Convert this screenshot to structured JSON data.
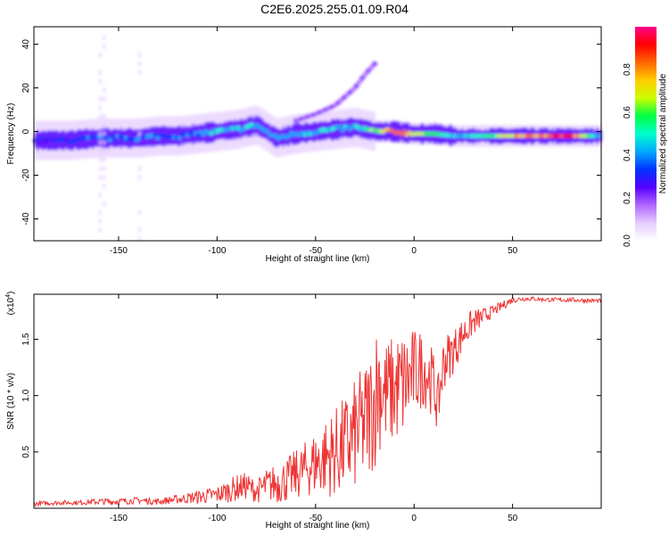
{
  "title": "C2E6.2025.255.01.09.R04",
  "colors": {
    "snr_line": "#ee3333",
    "spectrum_palette": [
      "#ffffff",
      "#e6ccff",
      "#b266ff",
      "#5500ff",
      "#0033ff",
      "#00aaff",
      "#00ffcc",
      "#00ff44",
      "#ccff00",
      "#ffcc00",
      "#ff6600",
      "#ff0000",
      "#ff0088"
    ]
  },
  "chart_data": [
    {
      "type": "heatmap",
      "xlabel": "Height of straight line (km)",
      "ylabel": "Frequency (Hz)",
      "xlim": [
        -193,
        95
      ],
      "ylim": [
        -50,
        48
      ],
      "xticks": [
        -150,
        -100,
        -50,
        0,
        50
      ],
      "yticks": [
        -40,
        -20,
        0,
        20,
        40
      ],
      "ridge": {
        "x": [
          -193,
          -175,
          -160,
          -150,
          -140,
          -130,
          -120,
          -110,
          -100,
          -90,
          -80,
          -70,
          -60,
          -50,
          -40,
          -30,
          -20,
          -10,
          0,
          10,
          20,
          30,
          40,
          50,
          60,
          70,
          80,
          95
        ],
        "y": [
          -4,
          -4,
          -3,
          -3,
          -3,
          -2,
          -2,
          -1,
          0,
          1,
          3,
          -3,
          -1,
          0,
          1,
          2,
          0,
          0,
          -1,
          -1,
          -2,
          -2,
          -2,
          -2,
          -2,
          -2,
          -2,
          -2
        ],
        "amplitude": [
          0.3,
          0.32,
          0.38,
          0.4,
          0.36,
          0.38,
          0.38,
          0.4,
          0.42,
          0.45,
          0.42,
          0.4,
          0.45,
          0.45,
          0.45,
          0.45,
          0.6,
          0.85,
          0.7,
          0.55,
          0.45,
          0.5,
          0.55,
          0.75,
          0.8,
          0.85,
          0.9,
          0.35
        ]
      },
      "branch": {
        "x": [
          -60,
          -50,
          -40,
          -35,
          -30,
          -25,
          -20
        ],
        "y": [
          5,
          8,
          12,
          16,
          20,
          26,
          31
        ]
      },
      "colorbar": {
        "label": "Normalized spectral amplitude",
        "ticks": [
          0.0,
          0.2,
          0.4,
          0.6,
          0.8
        ],
        "range": [
          0,
          1
        ]
      }
    },
    {
      "type": "line",
      "xlabel": "Height of straight line (km)",
      "ylabel": "SNR (10 * v/v)",
      "y_multiplier": "(x10",
      "y_multiplier_exp": "4",
      "xlim": [
        -193,
        95
      ],
      "ylim": [
        0,
        1.9
      ],
      "xticks": [
        -150,
        -100,
        -50,
        0,
        50
      ],
      "yticks": [
        0.5,
        1.0,
        1.5
      ],
      "series": [
        {
          "x": [
            -193,
            -180,
            -170,
            -160,
            -150,
            -140,
            -130,
            -120,
            -110,
            -100,
            -95,
            -90,
            -85,
            -80,
            -75,
            -70,
            -65,
            -60,
            -55,
            -50,
            -45,
            -40,
            -35,
            -30,
            -25,
            -20,
            -18,
            -15,
            -10,
            -5,
            0,
            5,
            10,
            12,
            15,
            20,
            25,
            30,
            35,
            40,
            45,
            50,
            55,
            60,
            70,
            80,
            95
          ],
          "y": [
            0.04,
            0.05,
            0.05,
            0.06,
            0.06,
            0.07,
            0.06,
            0.08,
            0.1,
            0.12,
            0.15,
            0.18,
            0.2,
            0.15,
            0.2,
            0.22,
            0.25,
            0.3,
            0.35,
            0.4,
            0.45,
            0.5,
            0.55,
            0.65,
            0.75,
            0.95,
            1.15,
            1.0,
            1.05,
            1.1,
            1.2,
            1.25,
            1.1,
            0.9,
            1.3,
            1.4,
            1.55,
            1.65,
            1.7,
            1.75,
            1.8,
            1.85,
            1.86,
            1.86,
            1.85,
            1.85,
            1.84
          ],
          "spread": [
            0.02,
            0.02,
            0.02,
            0.03,
            0.03,
            0.03,
            0.03,
            0.04,
            0.06,
            0.08,
            0.1,
            0.12,
            0.12,
            0.1,
            0.15,
            0.18,
            0.2,
            0.22,
            0.25,
            0.3,
            0.35,
            0.4,
            0.45,
            0.5,
            0.55,
            0.6,
            0.65,
            0.5,
            0.5,
            0.5,
            0.4,
            0.35,
            0.3,
            0.25,
            0.25,
            0.2,
            0.15,
            0.12,
            0.08,
            0.05,
            0.04,
            0.03,
            0.02,
            0.02,
            0.02,
            0.02,
            0.02
          ]
        }
      ]
    }
  ]
}
